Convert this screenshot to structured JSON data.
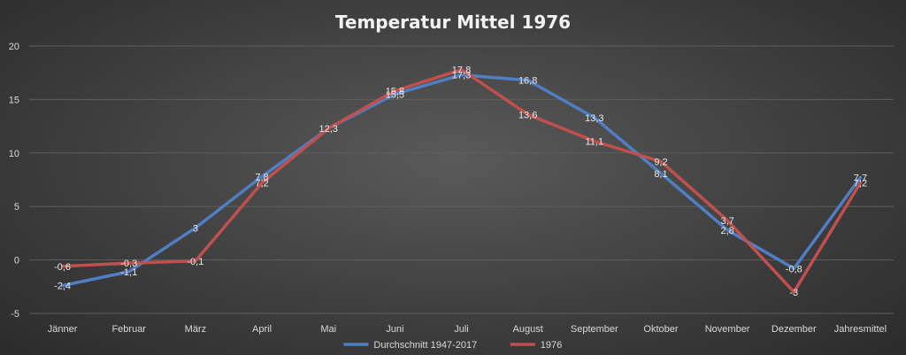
{
  "chart_data": {
    "type": "line",
    "title": "Temperatur Mittel 1976",
    "categories": [
      "Jänner",
      "Februar",
      "März",
      "April",
      "Mai",
      "Juni",
      "Juli",
      "August",
      "September",
      "Oktober",
      "November",
      "Dezember",
      "Jahresmittel"
    ],
    "ylim": [
      -5,
      20
    ],
    "yticks": [
      -5,
      0,
      5,
      10,
      15,
      20
    ],
    "grid": true,
    "legend_position": "bottom",
    "series": [
      {
        "name": "Durchschnitt 1947-2017",
        "color": "#4f7ec3",
        "values": [
          -2.4,
          -1.1,
          3,
          7.8,
          12.3,
          15.5,
          17.3,
          16.8,
          13.3,
          8.1,
          2.8,
          -0.8,
          7.7
        ],
        "labels": [
          "-2,4",
          "-1,1",
          "3",
          "7,8",
          "12,3",
          "15,5",
          "17,3",
          "16,8",
          "13,3",
          "8,1",
          "2,8",
          "-0,8",
          "7,7"
        ]
      },
      {
        "name": "1976",
        "color": "#c0504d",
        "values": [
          -0.6,
          -0.3,
          -0.1,
          7.2,
          12.3,
          15.8,
          17.8,
          13.6,
          11.1,
          9.2,
          3.7,
          -3,
          7.2
        ],
        "labels": [
          "-0,6",
          "-0,3",
          "-0,1",
          "7,2",
          "",
          "15,8",
          "17,8",
          "13,6",
          "11,1",
          "9,2",
          "3,7",
          "-3",
          "7,2"
        ]
      }
    ]
  }
}
